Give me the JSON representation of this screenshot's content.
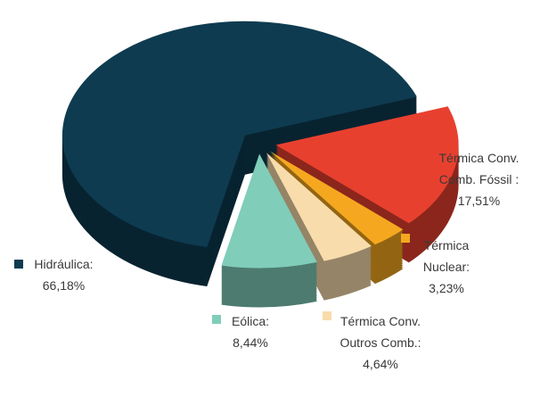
{
  "chart_data": {
    "type": "pie",
    "categories": [
      "Hidráulica:",
      "Térmica Conv. Comb. Fóssil :",
      "Térmica Nuclear:",
      "Térmica Conv. Outros Comb.:",
      "Eólica:"
    ],
    "values": [
      66.18,
      17.51,
      3.23,
      4.64,
      8.44
    ],
    "value_labels": [
      "66,18%",
      "17,51%",
      "3,23%",
      "4,64%",
      "8,44%"
    ],
    "colors": [
      "#0e3b50",
      "#e8402f",
      "#f5a81f",
      "#f8dcab",
      "#80cdb9"
    ]
  }
}
